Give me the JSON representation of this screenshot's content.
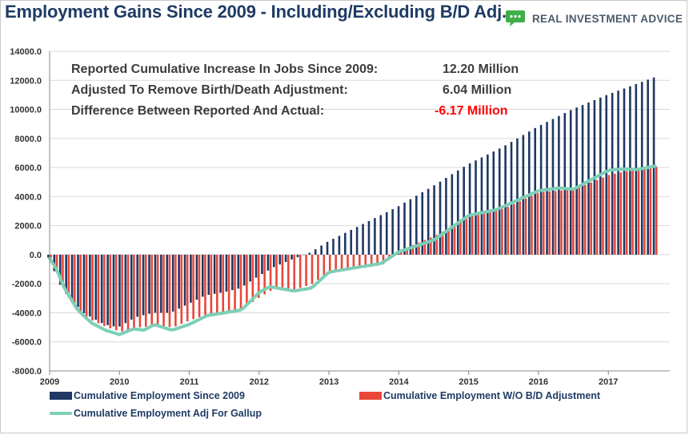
{
  "header": {
    "title": "Employment Gains Since 2009 - Including/Excluding B/D Adj.",
    "brand": "REAL INVESTMENT ADVICE",
    "brand_icon": "speech-bubble-icon"
  },
  "summary": {
    "rows": [
      {
        "label": "Reported Cumulative Increase In Jobs Since 2009:",
        "value": "12.20 Million"
      },
      {
        "label": "Adjusted To Remove Birth/Death Adjustment:",
        "value": "6.04 Million"
      },
      {
        "label": "Difference Between Reported And Actual:",
        "value": "-6.17 Million"
      }
    ]
  },
  "chart_data": {
    "type": "bar",
    "title": "Employment Gains Since 2009 - Including/Excluding B/D Adj.",
    "xlabel": "",
    "ylabel": "",
    "ylim": [
      -8000,
      14000
    ],
    "yticks": [
      "14000.0",
      "12000.0",
      "10000.0",
      "8000.0",
      "6000.0",
      "4000.0",
      "2000.0",
      "0.0",
      "-2000.0",
      "-4000.0",
      "-6000.0",
      "-8000.0"
    ],
    "xticks": [
      "2009",
      "2010",
      "2011",
      "2012",
      "2013",
      "2014",
      "2015",
      "2016",
      "2017"
    ],
    "x_start": 2009.0,
    "x_end": 2017.67,
    "bar_count": 103,
    "legend_position": "bottom",
    "series": [
      {
        "name": "Cumulative Employment Since 2009",
        "kind": "bar",
        "color": "#1f3864",
        "anchors": [
          [
            2009.0,
            -200
          ],
          [
            2009.2,
            -2400
          ],
          [
            2009.5,
            -4000
          ],
          [
            2009.8,
            -4800
          ],
          [
            2010.0,
            -5000
          ],
          [
            2010.25,
            -4300
          ],
          [
            2010.5,
            -4000
          ],
          [
            2010.75,
            -4000
          ],
          [
            2011.0,
            -3400
          ],
          [
            2011.25,
            -2800
          ],
          [
            2011.5,
            -2600
          ],
          [
            2011.75,
            -2300
          ],
          [
            2012.0,
            -1500
          ],
          [
            2012.25,
            -800
          ],
          [
            2012.5,
            -300
          ],
          [
            2012.75,
            150
          ],
          [
            2013.0,
            900
          ],
          [
            2013.5,
            2100
          ],
          [
            2014.0,
            3300
          ],
          [
            2014.5,
            4700
          ],
          [
            2015.0,
            6200
          ],
          [
            2015.5,
            7400
          ],
          [
            2016.0,
            8800
          ],
          [
            2016.5,
            10000
          ],
          [
            2017.0,
            11000
          ],
          [
            2017.67,
            12200
          ]
        ]
      },
      {
        "name": "Cumulative Employment W/O B/D Adjustment",
        "kind": "bar",
        "color": "#e8473a",
        "anchors": [
          [
            2009.0,
            -200
          ],
          [
            2009.1,
            -1400
          ],
          [
            2009.3,
            -3400
          ],
          [
            2009.5,
            -4300
          ],
          [
            2009.8,
            -5000
          ],
          [
            2010.0,
            -5300
          ],
          [
            2010.25,
            -5000
          ],
          [
            2010.5,
            -4900
          ],
          [
            2010.75,
            -5000
          ],
          [
            2011.0,
            -4500
          ],
          [
            2011.25,
            -4100
          ],
          [
            2011.5,
            -4000
          ],
          [
            2011.75,
            -3700
          ],
          [
            2012.0,
            -2900
          ],
          [
            2012.25,
            -2200
          ],
          [
            2012.5,
            -2400
          ],
          [
            2012.75,
            -2000
          ],
          [
            2013.0,
            -1100
          ],
          [
            2013.5,
            -900
          ],
          [
            2013.75,
            -700
          ],
          [
            2014.0,
            300
          ],
          [
            2014.5,
            1300
          ],
          [
            2015.0,
            2600
          ],
          [
            2015.5,
            3200
          ],
          [
            2016.0,
            4300
          ],
          [
            2016.5,
            4500
          ],
          [
            2017.0,
            5500
          ],
          [
            2017.4,
            5900
          ],
          [
            2017.67,
            6040
          ]
        ]
      },
      {
        "name": "Cumulative Employment Adj For Gallup",
        "kind": "line",
        "color": "#7dcfb6",
        "anchors": [
          [
            2009.0,
            -250
          ],
          [
            2009.1,
            -1000
          ],
          [
            2009.2,
            -2200
          ],
          [
            2009.4,
            -3800
          ],
          [
            2009.6,
            -4700
          ],
          [
            2009.8,
            -5200
          ],
          [
            2010.0,
            -5500
          ],
          [
            2010.2,
            -5100
          ],
          [
            2010.35,
            -5200
          ],
          [
            2010.5,
            -4800
          ],
          [
            2010.75,
            -5200
          ],
          [
            2011.0,
            -4800
          ],
          [
            2011.25,
            -4200
          ],
          [
            2011.5,
            -4000
          ],
          [
            2011.75,
            -3800
          ],
          [
            2012.0,
            -2600
          ],
          [
            2012.15,
            -2200
          ],
          [
            2012.5,
            -2500
          ],
          [
            2012.75,
            -2300
          ],
          [
            2013.0,
            -1200
          ],
          [
            2013.5,
            -800
          ],
          [
            2013.75,
            -600
          ],
          [
            2014.0,
            200
          ],
          [
            2014.5,
            1000
          ],
          [
            2015.0,
            2700
          ],
          [
            2015.4,
            3100
          ],
          [
            2016.0,
            4400
          ],
          [
            2016.3,
            4600
          ],
          [
            2016.5,
            4500
          ],
          [
            2017.0,
            5800
          ],
          [
            2017.2,
            5900
          ],
          [
            2017.4,
            5850
          ],
          [
            2017.67,
            6100
          ]
        ]
      }
    ],
    "annotations": [
      "Reported Cumulative Increase In Jobs Since 2009: 12.20 Million",
      "Adjusted To Remove Birth/Death Adjustment: 6.04 Million",
      "Difference Between Reported And Actual: -6.17 Million"
    ]
  }
}
